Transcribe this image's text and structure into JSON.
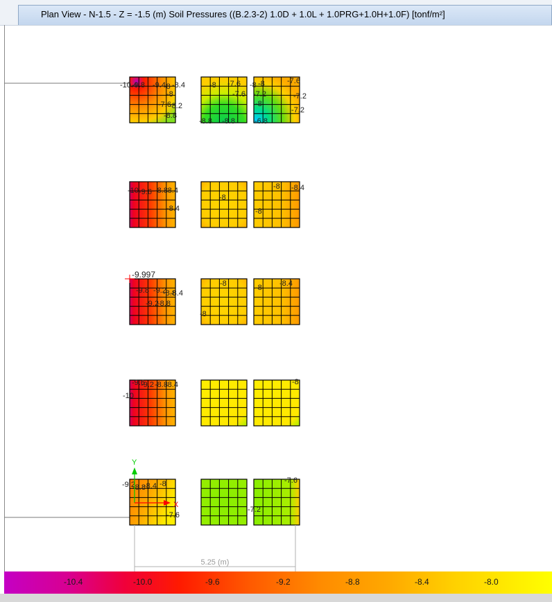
{
  "window": {
    "title": "Plan View - N-1.5 - Z = -1.5 (m)    Soil Pressures    ((B.2.3-2) 1.0D + 1.0L + 1.0PRG+1.0H+1.0F)  [tonf/m²]"
  },
  "plot": {
    "annotations": [
      "-10.4",
      "-9.8",
      "-9.4",
      "-8",
      "-8.4",
      "-8",
      "-7.6",
      "-8.2",
      "-8.8",
      "-8",
      "-7.6",
      "-7.6",
      "-8",
      "-7.2",
      "-8.8",
      "-8.8",
      "-6.8",
      "-8",
      "-7.6",
      "-7.2",
      "-8",
      "-7.2",
      "-10",
      "-9.6",
      "-8.8",
      "-8.4",
      "-8.4",
      "-8",
      "-8",
      "-8.4",
      "-8",
      "-9.997",
      "-9.8",
      "-9.2",
      "-8.8",
      "-8.4",
      "-9.2",
      "-8.8",
      "-8",
      "-8",
      "-8",
      "-8.4",
      "-9.6",
      "-9.2",
      "-8.8",
      "-8.4",
      "-10",
      "-8",
      "-9.2",
      "-8.8",
      "-8.4",
      "-8",
      "-7.6",
      "-7.6",
      "-7.2"
    ],
    "axis_y": "Y",
    "axis_x": "X",
    "dimension": "5.25 (m)"
  },
  "legend": {
    "labels": [
      "-10.4",
      "-10.0",
      "-9.6",
      "-9.2",
      "-8.8",
      "-8.4",
      "-8.0"
    ]
  }
}
